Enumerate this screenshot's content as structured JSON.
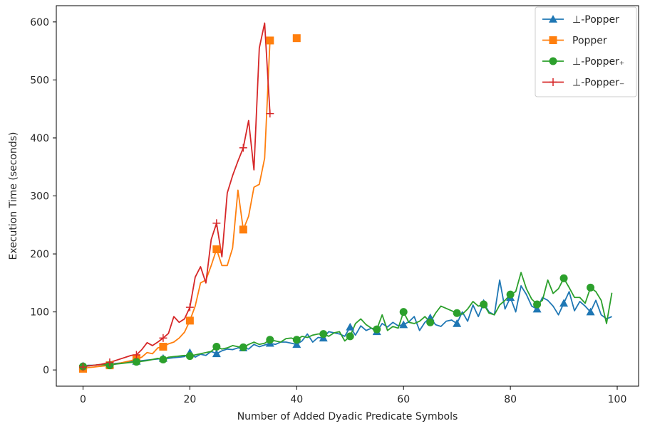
{
  "chart_data": {
    "type": "line",
    "title": "",
    "xlabel": "Number of Added Dyadic Predicate Symbols",
    "ylabel": "Execution Time (seconds)",
    "xlim": [
      -5,
      104
    ],
    "ylim": [
      -28,
      628
    ],
    "x_ticks": [
      "0",
      "20",
      "40",
      "60",
      "80",
      "100"
    ],
    "y_ticks": [
      "0",
      "100",
      "200",
      "300",
      "400",
      "500",
      "600"
    ],
    "grid": false,
    "legend_position": "top-right",
    "series": [
      {
        "name": "⊥-Popper",
        "color": "#1f77b4",
        "marker": "triangle",
        "x": [
          0,
          1,
          2,
          3,
          4,
          5,
          6,
          7,
          8,
          9,
          10,
          11,
          12,
          13,
          14,
          15,
          16,
          17,
          18,
          19,
          20,
          21,
          22,
          23,
          24,
          25,
          26,
          27,
          28,
          29,
          30,
          31,
          32,
          33,
          34,
          35,
          36,
          37,
          38,
          39,
          40,
          41,
          42,
          43,
          44,
          45,
          46,
          47,
          48,
          49,
          50,
          51,
          52,
          53,
          54,
          55,
          56,
          57,
          58,
          59,
          60,
          61,
          62,
          63,
          64,
          65,
          66,
          67,
          68,
          69,
          70,
          71,
          72,
          73,
          74,
          75,
          76,
          77,
          78,
          79,
          80,
          81,
          82,
          83,
          84,
          85,
          86,
          87,
          88,
          89,
          90,
          91,
          92,
          93,
          94,
          95,
          96,
          97,
          98,
          99
        ],
        "y": [
          7,
          8,
          8,
          9,
          10,
          10,
          11,
          12,
          13,
          14,
          15,
          16,
          17,
          18,
          19,
          20,
          20,
          21,
          22,
          23,
          30,
          22,
          27,
          25,
          32,
          28,
          33,
          36,
          35,
          38,
          38,
          36,
          44,
          40,
          43,
          46,
          44,
          48,
          48,
          46,
          44,
          50,
          62,
          48,
          56,
          55,
          66,
          64,
          62,
          58,
          74,
          60,
          76,
          68,
          72,
          66,
          80,
          74,
          82,
          76,
          78,
          83,
          92,
          68,
          82,
          90,
          78,
          75,
          84,
          86,
          80,
          100,
          84,
          112,
          92,
          115,
          100,
          95,
          155,
          105,
          125,
          100,
          145,
          130,
          110,
          105,
          125,
          120,
          110,
          95,
          115,
          135,
          102,
          118,
          110,
          100,
          120,
          95,
          88,
          92
        ]
      },
      {
        "name": "Popper",
        "color": "#ff7f0e",
        "marker": "square",
        "x": [
          0,
          1,
          2,
          3,
          4,
          5,
          6,
          7,
          8,
          9,
          10,
          11,
          12,
          13,
          14,
          15,
          16,
          17,
          18,
          19,
          20,
          21,
          22,
          23,
          24,
          25,
          26,
          27,
          28,
          29,
          30,
          31,
          32,
          33,
          34,
          35,
          40
        ],
        "y": [
          2,
          4,
          5,
          6,
          7,
          8,
          10,
          12,
          14,
          16,
          19,
          22,
          30,
          28,
          38,
          40,
          45,
          48,
          55,
          65,
          85,
          110,
          150,
          155,
          180,
          208,
          180,
          180,
          210,
          310,
          242,
          265,
          315,
          320,
          365,
          568,
          572
        ]
      },
      {
        "name": "⊥-Popper₊",
        "color": "#2ca02c",
        "marker": "circle",
        "x": [
          0,
          1,
          2,
          3,
          4,
          5,
          6,
          7,
          8,
          9,
          10,
          11,
          12,
          13,
          14,
          15,
          16,
          17,
          18,
          19,
          20,
          21,
          22,
          23,
          24,
          25,
          26,
          27,
          28,
          29,
          30,
          31,
          32,
          33,
          34,
          35,
          36,
          37,
          38,
          39,
          40,
          41,
          42,
          43,
          44,
          45,
          46,
          47,
          48,
          49,
          50,
          51,
          52,
          53,
          54,
          55,
          56,
          57,
          58,
          59,
          60,
          61,
          62,
          63,
          64,
          65,
          66,
          67,
          68,
          69,
          70,
          71,
          72,
          73,
          74,
          75,
          76,
          77,
          78,
          79,
          80,
          81,
          82,
          83,
          84,
          85,
          86,
          87,
          88,
          89,
          90,
          91,
          92,
          93,
          94,
          95,
          96,
          97,
          98,
          99
        ],
        "y": [
          6,
          7,
          8,
          9,
          9,
          8,
          10,
          11,
          12,
          13,
          14,
          15,
          16,
          18,
          20,
          18,
          22,
          23,
          24,
          25,
          24,
          26,
          28,
          30,
          32,
          40,
          36,
          38,
          42,
          40,
          39,
          44,
          48,
          44,
          46,
          52,
          50,
          48,
          54,
          55,
          52,
          58,
          56,
          60,
          62,
          62,
          58,
          64,
          66,
          50,
          58,
          80,
          88,
          78,
          72,
          70,
          95,
          68,
          75,
          72,
          100,
          82,
          80,
          84,
          92,
          82,
          98,
          110,
          106,
          102,
          98,
          96,
          105,
          118,
          110,
          113,
          98,
          95,
          112,
          120,
          130,
          135,
          168,
          140,
          122,
          113,
          120,
          155,
          132,
          140,
          158,
          142,
          125,
          125,
          115,
          142,
          135,
          120,
          80,
          133
        ]
      },
      {
        "name": "⊥-Popper₋",
        "color": "#d62728",
        "marker": "plus",
        "x": [
          0,
          1,
          2,
          3,
          4,
          5,
          6,
          7,
          8,
          9,
          10,
          11,
          12,
          13,
          14,
          15,
          16,
          17,
          18,
          19,
          20,
          21,
          22,
          23,
          24,
          25,
          26,
          27,
          28,
          29,
          30,
          31,
          32,
          33,
          34,
          35
        ],
        "y": [
          5,
          7,
          8,
          9,
          11,
          13,
          16,
          19,
          22,
          25,
          26,
          35,
          47,
          42,
          48,
          55,
          63,
          92,
          82,
          88,
          108,
          160,
          178,
          150,
          225,
          253,
          195,
          305,
          335,
          360,
          383,
          430,
          345,
          555,
          598,
          442
        ]
      }
    ]
  }
}
